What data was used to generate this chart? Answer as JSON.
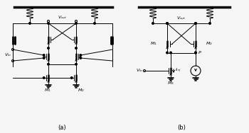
{
  "bg_color": "#f5f5f5",
  "line_color": "#000000",
  "label_a": "(a)",
  "label_b": "(b)"
}
